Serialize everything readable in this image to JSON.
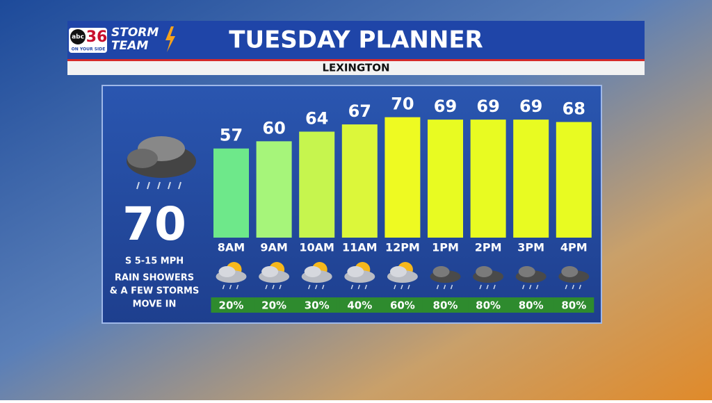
{
  "logo": {
    "station": "abc",
    "number": "36",
    "tagline": "ON YOUR SIDE",
    "team_line1": "STORM",
    "team_line2": "TEAM"
  },
  "current": {
    "temperature": "70",
    "wind": "S 5-15 MPH",
    "summary": [
      "RAIN SHOWERS",
      "& A FEW STORMS",
      "MOVE IN"
    ]
  },
  "chart_data": {
    "type": "bar",
    "title": "TUESDAY PLANNER",
    "subtitle": "LEXINGTON",
    "categories": [
      "8AM",
      "9AM",
      "10AM",
      "11AM",
      "12PM",
      "1PM",
      "2PM",
      "3PM",
      "4PM"
    ],
    "values": [
      57,
      60,
      64,
      67,
      70,
      69,
      69,
      69,
      68
    ],
    "colors": [
      "#6ee88a",
      "#a6f57a",
      "#c6f54e",
      "#dcf73a",
      "#eefa22",
      "#e8fb22",
      "#e8fb22",
      "#e8fb22",
      "#e8fb22"
    ],
    "ylim": [
      20,
      80
    ],
    "precipitation": {
      "values": [
        20,
        20,
        30,
        40,
        60,
        80,
        80,
        80,
        80
      ],
      "value_labels": [
        "20%",
        "20%",
        "30%",
        "40%",
        "60%",
        "80%",
        "80%",
        "80%",
        "80%"
      ],
      "color": "#2e8b2e"
    }
  }
}
